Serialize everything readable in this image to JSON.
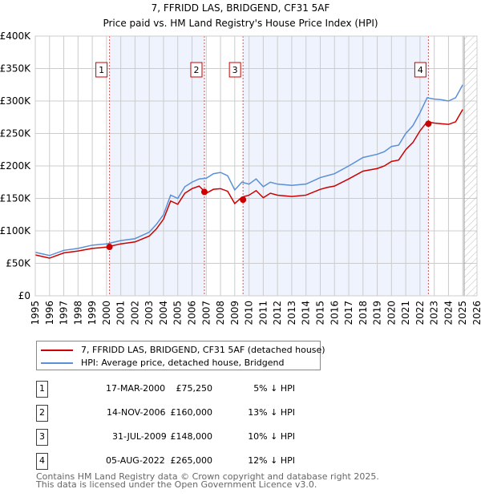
{
  "chart_data": {
    "type": "line",
    "title": "7, FFRIDD LAS, BRIDGEND, CF31 5AF",
    "subtitle": "Price paid vs. HM Land Registry's House Price Index (HPI)",
    "xlim": [
      1995,
      2026
    ],
    "ylim": [
      0,
      400000
    ],
    "y_ticks": [
      {
        "v": 0,
        "label": "£0"
      },
      {
        "v": 50,
        "label": "£50K"
      },
      {
        "v": 100,
        "label": "£100K"
      },
      {
        "v": 150,
        "label": "£150K"
      },
      {
        "v": 200,
        "label": "£200K"
      },
      {
        "v": 250,
        "label": "£250K"
      },
      {
        "v": 300,
        "label": "£300K"
      },
      {
        "v": 350,
        "label": "£350K"
      },
      {
        "v": 400,
        "label": "£400K"
      }
    ],
    "x_ticks": [
      "1995",
      "1996",
      "1997",
      "1998",
      "1999",
      "2000",
      "2001",
      "2002",
      "2003",
      "2004",
      "2005",
      "2006",
      "2007",
      "2008",
      "2009",
      "2010",
      "2011",
      "2012",
      "2013",
      "2014",
      "2015",
      "2016",
      "2017",
      "2018",
      "2019",
      "2020",
      "2021",
      "2022",
      "2023",
      "2024",
      "2025",
      "2026"
    ],
    "grid": true,
    "x": [
      1995,
      1996,
      1997,
      1998,
      1999,
      2000,
      2001,
      2002,
      2003,
      2003.5,
      2004,
      2004.5,
      2005,
      2005.5,
      2006,
      2006.5,
      2007,
      2007.5,
      2008,
      2008.5,
      2009,
      2009.5,
      2010,
      2010.5,
      2011,
      2011.5,
      2012,
      2013,
      2014,
      2015,
      2015.5,
      2016,
      2017,
      2018,
      2019,
      2019.5,
      2020,
      2020.5,
      2021,
      2021.5,
      2022,
      2022.5,
      2023,
      2023.5,
      2024,
      2024.5,
      2025
    ],
    "series": [
      {
        "name": "7, FFRIDD LAS, BRIDGEND, CF31 5AF (detached house)",
        "color": "#cc0000",
        "values_k": [
          63,
          58,
          66,
          69,
          73,
          75,
          80,
          83,
          92,
          103,
          118,
          146,
          141,
          158,
          165,
          169,
          158,
          164,
          165,
          161,
          142,
          152,
          155,
          162,
          151,
          158,
          155,
          153,
          155,
          164,
          167,
          169,
          180,
          192,
          196,
          200,
          207,
          209,
          225,
          236,
          254,
          268,
          266,
          265,
          264,
          268,
          287
        ]
      },
      {
        "name": "HPI: Average price, detached house, Bridgend",
        "color": "#5b8fd6",
        "values_k": [
          67,
          62,
          70,
          73,
          78,
          80,
          85,
          88,
          98,
          110,
          125,
          155,
          150,
          168,
          175,
          180,
          181,
          188,
          190,
          185,
          163,
          175,
          172,
          180,
          168,
          175,
          172,
          170,
          172,
          182,
          185,
          188,
          200,
          213,
          218,
          222,
          230,
          232,
          250,
          262,
          282,
          305,
          303,
          302,
          300,
          305,
          325
        ]
      }
    ],
    "sales": [
      {
        "n": "1",
        "x": 2000.21,
        "date": "17-MAR-2000",
        "price": "£75,250",
        "price_k": 75.25,
        "hpi": "5% ↓ HPI"
      },
      {
        "n": "2",
        "x": 2006.87,
        "date": "14-NOV-2006",
        "price": "£160,000",
        "price_k": 160,
        "hpi": "13% ↓ HPI"
      },
      {
        "n": "3",
        "x": 2009.58,
        "date": "31-JUL-2009",
        "price": "£148,000",
        "price_k": 148,
        "hpi": "10% ↓ HPI"
      },
      {
        "n": "4",
        "x": 2022.59,
        "date": "05-AUG-2022",
        "price": "£265,000",
        "price_k": 265,
        "hpi": "12% ↓ HPI"
      }
    ],
    "forecast_start": 2025.1
  },
  "footer": [
    "Contains HM Land Registry data © Crown copyright and database right 2025.",
    "This data is licensed under the Open Government Licence v3.0."
  ]
}
